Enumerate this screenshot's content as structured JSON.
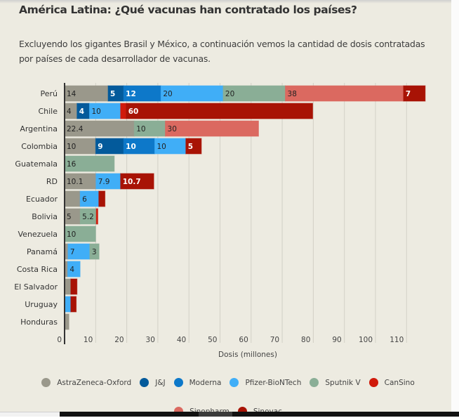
{
  "header": {
    "title": "América Latina: ¿Qué vacunas han contratado los países?",
    "subtitle": "Excluyendo los gigantes Brasil y México, a continuación vemos la cantidad de dosis contratadas por países de cada desarrollador de vacunas."
  },
  "colors": {
    "background": "#edebe1",
    "AstraZeneca-Oxford": "#9a988b",
    "J&J": "#035a9b",
    "Moderna": "#0d78c9",
    "Pfizer-BioNTech": "#40aef7",
    "Sputnik V": "#8aae96",
    "CanSino": "#d01a0b",
    "Sinopharm": "#db6960",
    "Sinovac": "#a81305"
  },
  "chart_data": {
    "type": "bar",
    "orientation": "horizontal",
    "stacked": true,
    "title": "América Latina: ¿Qué vacunas han contratado los países?",
    "xlabel": "Dosis (millones)",
    "ylabel": "",
    "xlim": [
      0,
      117
    ],
    "xticks": [
      0,
      10,
      20,
      30,
      40,
      50,
      60,
      70,
      80,
      90,
      100,
      110
    ],
    "grid": true,
    "legend_position": "bottom",
    "categories": [
      "Perú",
      "Chile",
      "Argentina",
      "Colombia",
      "Guatemala",
      "RD",
      "Ecuador",
      "Bolivia",
      "Venezuela",
      "Panamá",
      "Costa Rica",
      "El Salvador",
      "Uruguay",
      "Honduras"
    ],
    "series": [
      {
        "name": "AstraZeneca-Oxford",
        "values": [
          14,
          4,
          22.4,
          10,
          0,
          10.1,
          5,
          5,
          0,
          1.1,
          1,
          2,
          0,
          1.4
        ]
      },
      {
        "name": "J&J",
        "values": [
          5,
          4,
          0,
          9,
          0,
          0,
          0,
          0,
          0,
          0,
          0,
          0,
          0,
          0
        ]
      },
      {
        "name": "Moderna",
        "values": [
          12,
          0,
          0,
          10,
          0,
          0,
          0,
          0,
          0,
          0,
          0,
          0,
          0,
          0
        ]
      },
      {
        "name": "Pfizer-BioNTech",
        "values": [
          20,
          10,
          0,
          10,
          0,
          7.9,
          6,
          0,
          0,
          7,
          4,
          0,
          2,
          0
        ]
      },
      {
        "name": "Sputnik V",
        "values": [
          20,
          0,
          10,
          0,
          16,
          0,
          0,
          5.2,
          10,
          3,
          0,
          0,
          0,
          0
        ]
      },
      {
        "name": "CanSino",
        "values": [
          0,
          1.8,
          0,
          0,
          0,
          0,
          0,
          0.5,
          0,
          0,
          0,
          0,
          0,
          0
        ]
      },
      {
        "name": "Sinopharm",
        "values": [
          38,
          0,
          30,
          0,
          0,
          0,
          0,
          0,
          0,
          0,
          0,
          0,
          0,
          0
        ]
      },
      {
        "name": "Sinovac",
        "values": [
          7,
          60,
          0,
          5,
          0,
          10.7,
          2,
          0,
          0,
          0,
          0,
          2,
          1.75,
          0
        ]
      }
    ],
    "segment_labels": {
      "Perú": [
        "14",
        "5",
        "12",
        "20",
        "20",
        "",
        "38",
        "7"
      ],
      "Chile": [
        "4",
        "4",
        "",
        "10",
        "",
        "",
        "",
        "60"
      ],
      "Argentina": [
        "22.4",
        "",
        "",
        "",
        "10",
        "",
        "30",
        ""
      ],
      "Colombia": [
        "10",
        "9",
        "10",
        "10",
        "",
        "",
        "",
        "5"
      ],
      "Guatemala": [
        "",
        "",
        "",
        "",
        "16",
        "",
        "",
        ""
      ],
      "RD": [
        "10.1",
        "",
        "",
        "7.9",
        "",
        "",
        "",
        "10.7"
      ],
      "Ecuador": [
        "",
        "",
        "",
        "6",
        "",
        "",
        "",
        ""
      ],
      "Bolivia": [
        "5",
        "",
        "",
        "",
        "5.2",
        "",
        "",
        ""
      ],
      "Venezuela": [
        "",
        "",
        "",
        "",
        "10",
        "",
        "",
        ""
      ],
      "Panamá": [
        "",
        "",
        "",
        "7",
        "3",
        "",
        "",
        ""
      ],
      "Costa Rica": [
        "",
        "",
        "",
        "4",
        "",
        "",
        "",
        ""
      ],
      "El Salvador": [
        "",
        "",
        "",
        "",
        "",
        "",
        "",
        ""
      ],
      "Uruguay": [
        "",
        "",
        "",
        "",
        "",
        "",
        "",
        ""
      ],
      "Honduras": [
        "",
        "",
        "",
        "",
        "",
        "",
        "",
        ""
      ]
    }
  },
  "legend": {
    "items": [
      "AstraZeneca-Oxford",
      "J&J",
      "Moderna",
      "Pfizer-BioNTech",
      "Sputnik V",
      "CanSino",
      "Sinopharm",
      "Sinovac"
    ]
  }
}
